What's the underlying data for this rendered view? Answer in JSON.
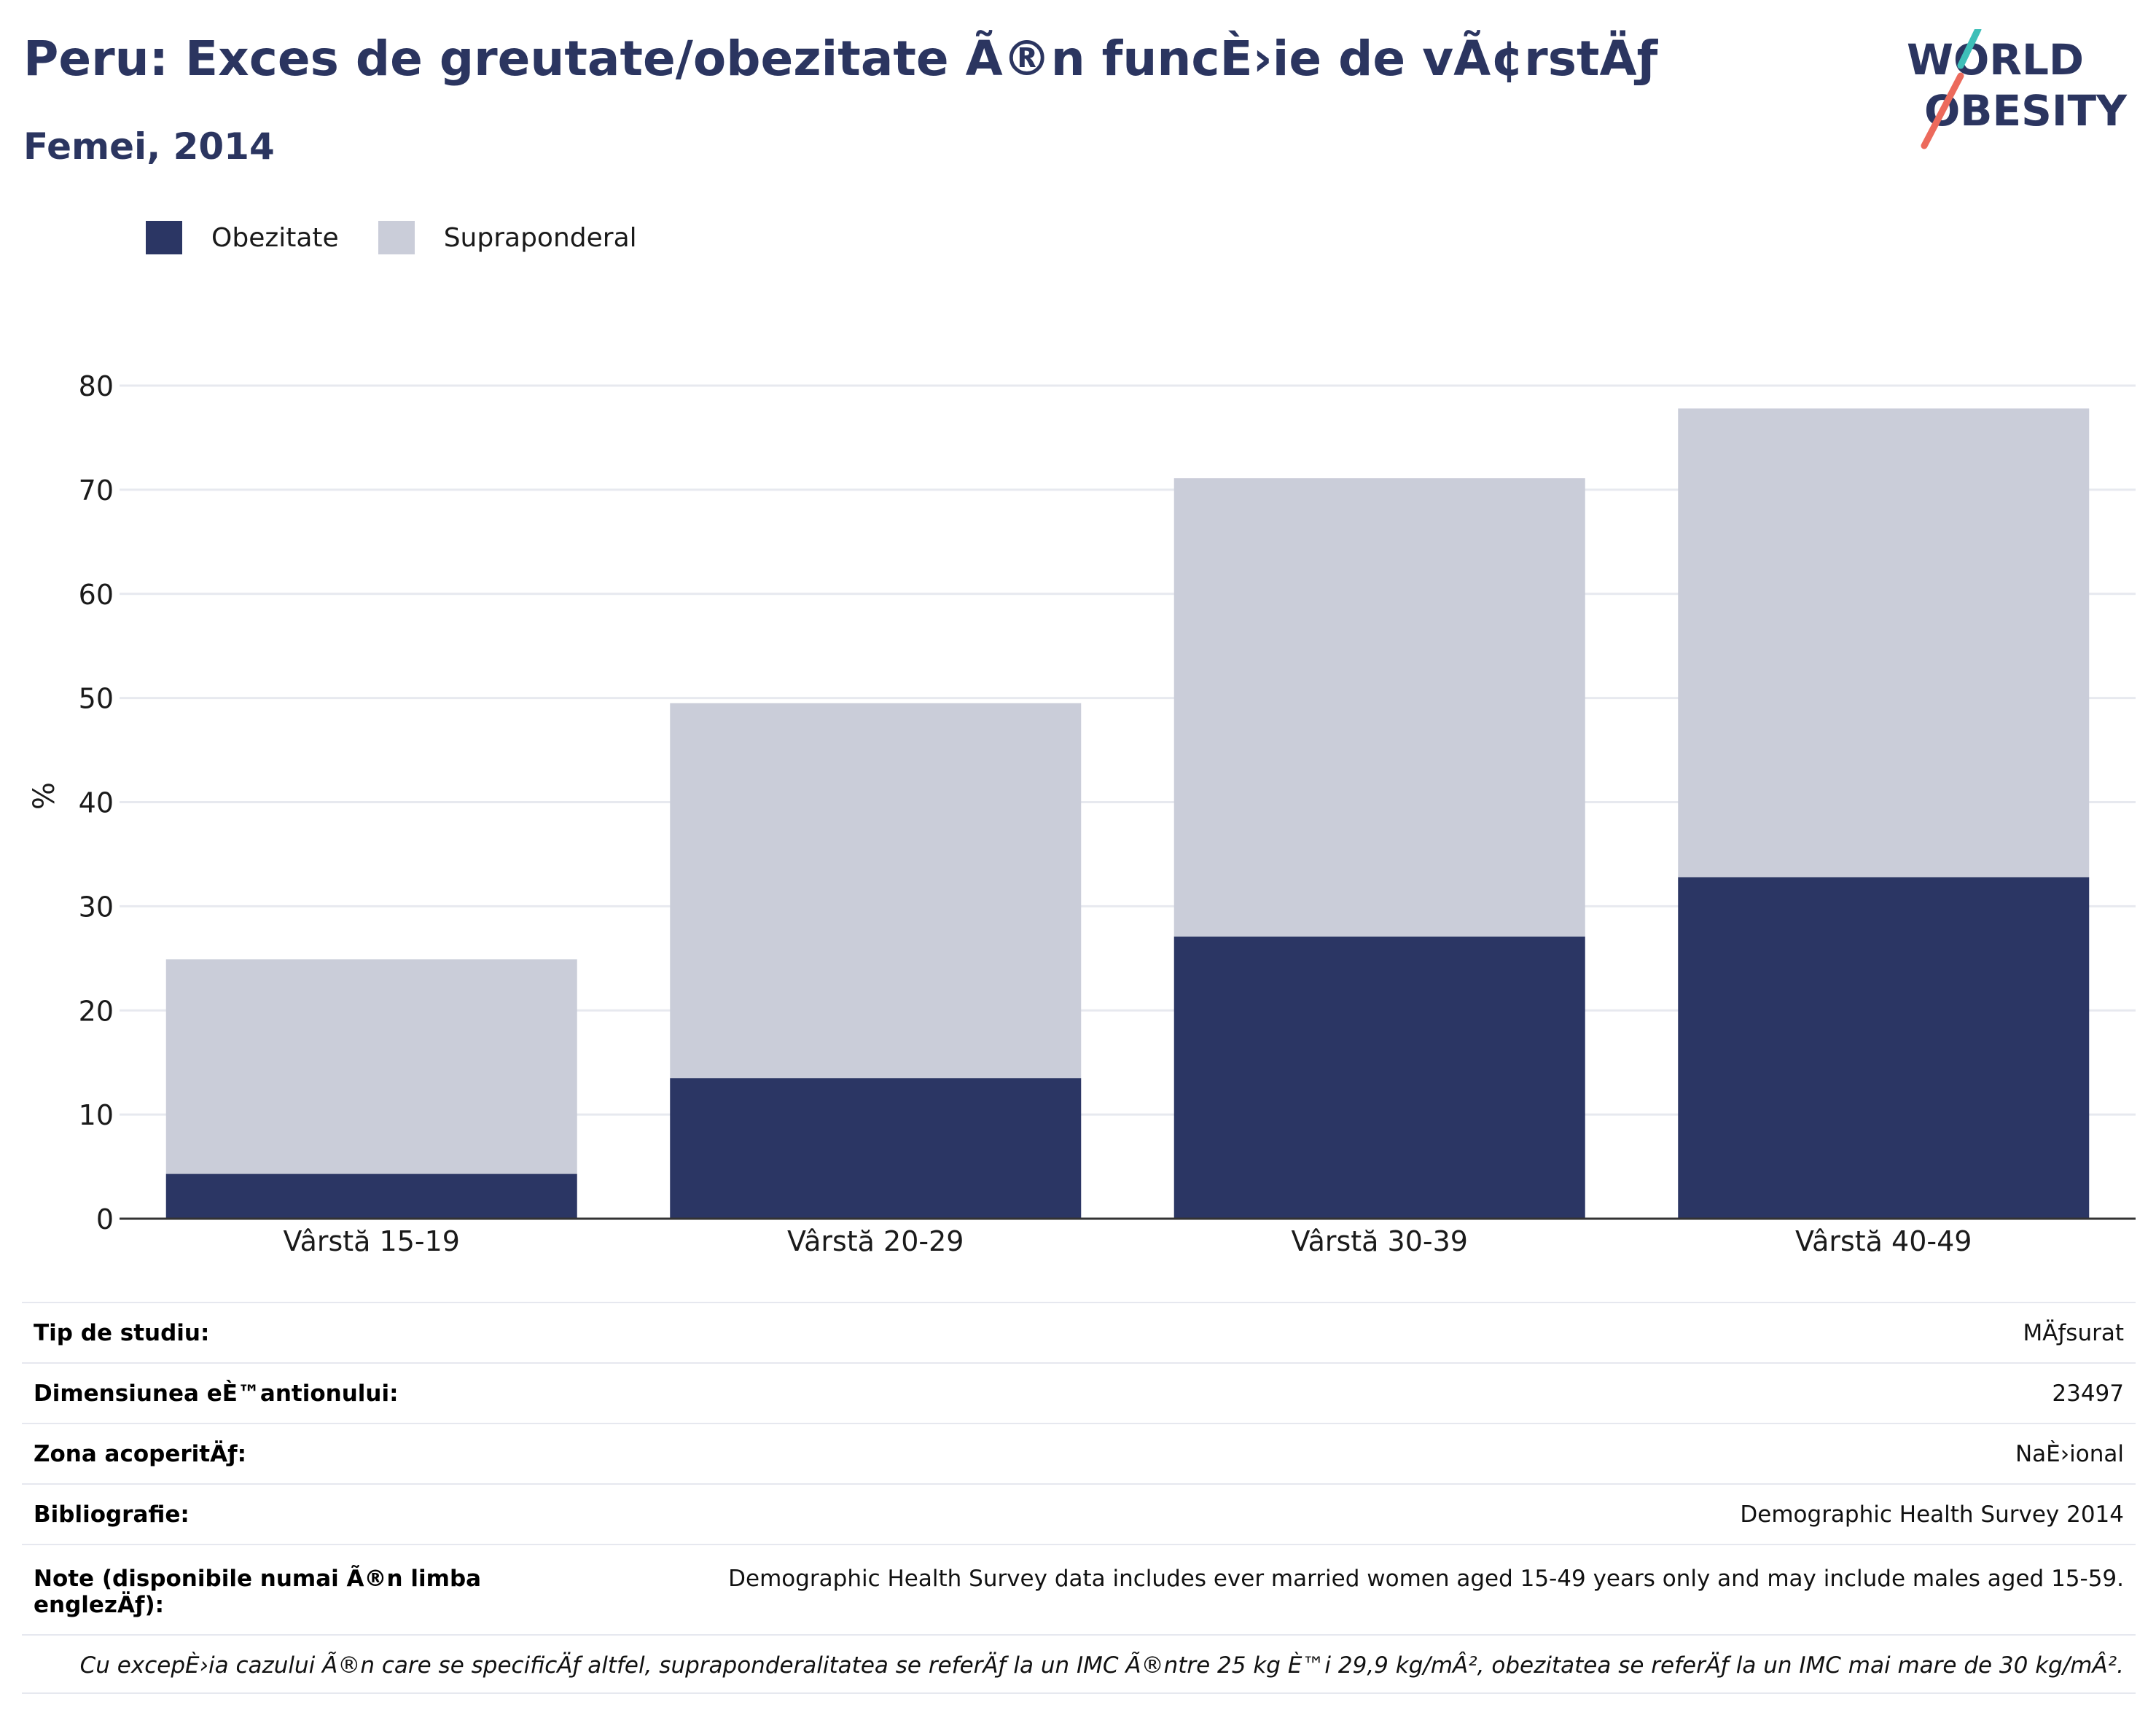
{
  "header": {
    "title": "Peru: Exces de greutate/obezitate Ã®n funcÈ›ie de vÃ¢rstÄƒ",
    "subtitle": "Femei, 2014",
    "logo_text": [
      "WORLD",
      "OBESITY"
    ]
  },
  "legend": [
    {
      "label": "Obezitate",
      "color": "#2b3664"
    },
    {
      "label": "Supraponderal",
      "color": "#cacdd9"
    }
  ],
  "chart_data": {
    "type": "bar",
    "stacked": true,
    "categories": [
      "Vârstă 15-19",
      "Vârstă 20-29",
      "Vârstă 30-39",
      "Vârstă 40-49"
    ],
    "series": [
      {
        "name": "Obezitate",
        "color": "#2b3664",
        "values": [
          4.3,
          13.5,
          27.1,
          32.8
        ]
      },
      {
        "name": "Supraponderal",
        "color": "#cacdd9",
        "values": [
          20.6,
          36.0,
          44.0,
          45.0
        ]
      }
    ],
    "totals": [
      24.9,
      49.5,
      71.1,
      77.8
    ],
    "ylabel": "%",
    "ylim": [
      0,
      80
    ],
    "yticks": [
      0,
      10,
      20,
      30,
      40,
      50,
      60,
      70,
      80
    ],
    "grid": true,
    "legend_position": "top-left"
  },
  "info": [
    {
      "key": "Tip de studiu:",
      "value": "MÄƒsurat"
    },
    {
      "key": "Dimensiunea eÈ™antionului:",
      "value": "23497"
    },
    {
      "key": "Zona acoperitÄƒ:",
      "value": "NaÈ›ional"
    },
    {
      "key": "Bibliografie:",
      "value": "Demographic Health Survey 2014"
    },
    {
      "key": "Note (disponibile numai Ã®n limba englezÄƒ):",
      "value": "Demographic Health Survey data includes ever married women aged 15-49 years only and may include males aged 15-59."
    }
  ],
  "footnote": "Cu excepÈ›ia cazului Ã®n care se specificÄƒ altfel, supraponderalitatea se referÄƒ la un IMC Ã®ntre 25 kg È™i 29,9 kg/mÂ², obezitatea se referÄƒ la un IMC mai mare de 30 kg/mÂ²."
}
